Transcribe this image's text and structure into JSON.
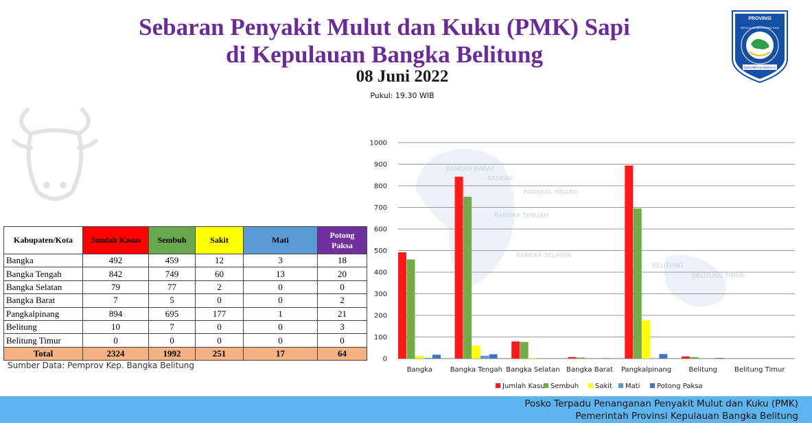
{
  "header": {
    "title_line1": "Sebaran Penyakit Mulut dan Kuku (PMK) Sapi",
    "title_line2": "di Kepulauan Bangka Belitung",
    "date": "08 Juni 2022",
    "time": "Pukul: 19.30 WIB"
  },
  "logo": {
    "top_text": "PROVINSI",
    "ring_text": "KEPULAUAN BANGKA BELITUNG",
    "motto": "SERUMPUN SEBALAI",
    "colors": {
      "shield": "#1550a8",
      "border": "#ffffff",
      "island": "#2e9e4a"
    }
  },
  "table": {
    "headers": [
      "Kabupaten/Kota",
      "Jumlah Kasus",
      "Sembuh",
      "Sakit",
      "Mati",
      "Potong Paksa"
    ],
    "header_colors": [
      "#ffffff",
      "#ff0000",
      "#6aa84f",
      "#ffff00",
      "#5b9bd5",
      "#7030a0"
    ],
    "rows": [
      [
        "Bangka",
        "492",
        "459",
        "12",
        "3",
        "18"
      ],
      [
        "Bangka Tengah",
        "842",
        "749",
        "60",
        "13",
        "20"
      ],
      [
        "Bangka Selatan",
        "79",
        "77",
        "2",
        "0",
        "0"
      ],
      [
        "Bangka Barat",
        "7",
        "5",
        "0",
        "0",
        "2"
      ],
      [
        "Pangkalpinang",
        "894",
        "695",
        "177",
        "1",
        "21"
      ],
      [
        "Belitung",
        "10",
        "7",
        "0",
        "0",
        "3"
      ],
      [
        "Belitung Timur",
        "0",
        "0",
        "0",
        "0",
        "0"
      ]
    ],
    "total": [
      "Total",
      "2324",
      "1992",
      "251",
      "17",
      "64"
    ]
  },
  "source": "Sumber Data: Pemprov Kep. Bangka Belitung",
  "chart_data": {
    "type": "bar",
    "title": "",
    "xlabel": "",
    "ylabel": "",
    "ylim": [
      0,
      1000
    ],
    "yticks": [
      0,
      100,
      200,
      300,
      400,
      500,
      600,
      700,
      800,
      900,
      1000
    ],
    "grid": true,
    "legend_position": "bottom",
    "background_map_labels": [
      "BANGKA BARAT",
      "BANGKA",
      "PANGKAL PINANG",
      "BANGKA TENGAH",
      "BANGKA SELATAN",
      "BELITUNG",
      "BELITUNG TIMUR"
    ],
    "categories": [
      "Bangka",
      "Bangka Tengah",
      "Bangka Selatan",
      "Bangka Barat",
      "Pangkalpinang",
      "Belitung",
      "Belitung Timur"
    ],
    "series": [
      {
        "name": "Jumlah Kasus",
        "color": "#ff1a1a",
        "values": [
          492,
          842,
          79,
          7,
          894,
          10,
          0
        ]
      },
      {
        "name": "Sembuh",
        "color": "#70ad47",
        "values": [
          459,
          749,
          77,
          5,
          695,
          7,
          0
        ]
      },
      {
        "name": "Sakit",
        "color": "#ffff00",
        "values": [
          12,
          60,
          2,
          0,
          177,
          0,
          0
        ]
      },
      {
        "name": "Mati",
        "color": "#5b9bd5",
        "values": [
          3,
          13,
          0,
          0,
          1,
          0,
          0
        ]
      },
      {
        "name": "Potong Paksa",
        "color": "#4472c4",
        "values": [
          18,
          20,
          0,
          2,
          21,
          3,
          0
        ]
      }
    ]
  },
  "footer": {
    "line1": "Posko Terpadu Penanganan Penyakit Mulut dan Kuku (PMK)",
    "line2": "Pemerintah Provinsi Kepulauan Bangka Belitung",
    "background": "#5eb4ef"
  }
}
